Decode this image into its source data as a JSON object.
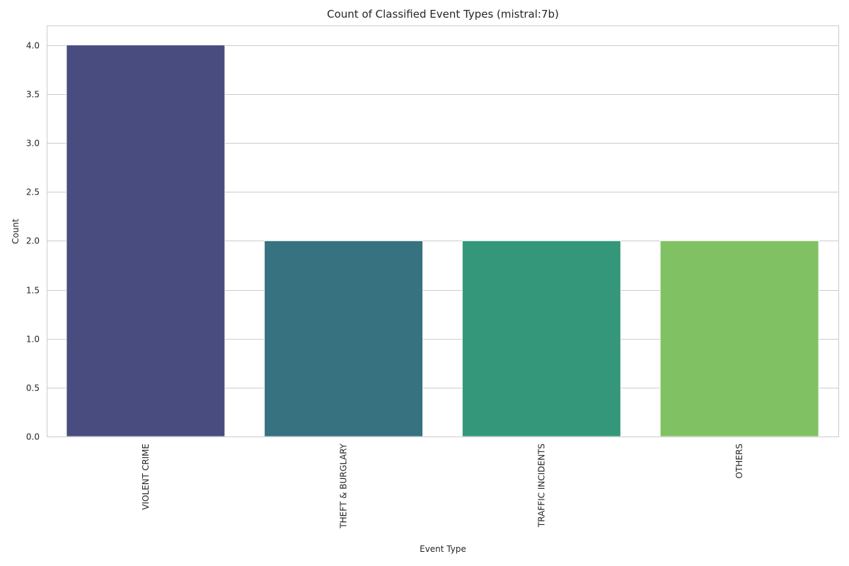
{
  "chart_data": {
    "type": "bar",
    "title": "Count of Classified Event Types (mistral:7b)",
    "xlabel": "Event Type",
    "ylabel": "Count",
    "categories": [
      "VIOLENT CRIME",
      "THEFT & BURGLARY",
      "TRAFFIC INCIDENTS",
      "OTHERS"
    ],
    "values": [
      4,
      2,
      2,
      2
    ],
    "colors": [
      "#484c7e",
      "#36727f",
      "#35977a",
      "#80c263"
    ],
    "ylim": [
      0,
      4.2
    ],
    "yticks": [
      0.0,
      0.5,
      1.0,
      1.5,
      2.0,
      2.5,
      3.0,
      3.5,
      4.0
    ],
    "ytick_labels": [
      "0.0",
      "0.5",
      "1.0",
      "1.5",
      "2.0",
      "2.5",
      "3.0",
      "3.5",
      "4.0"
    ],
    "grid": "horizontal",
    "legend": "none"
  }
}
